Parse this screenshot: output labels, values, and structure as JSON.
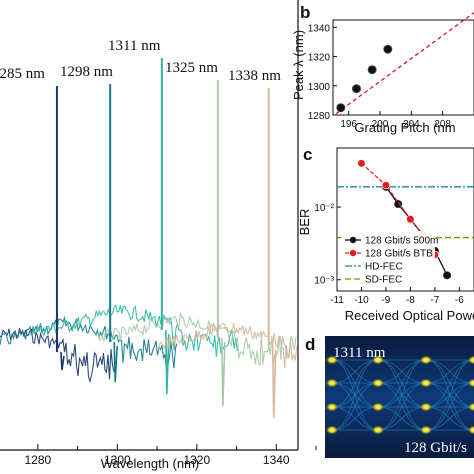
{
  "chart_data": [
    {
      "panel": "a",
      "type": "line",
      "xlabel": "Wavelength (nm)",
      "ylabel": "",
      "xlim": [
        1275,
        1350
      ],
      "x_ticks": [
        "1280",
        "1300",
        "1320",
        "1340"
      ],
      "peaks": [
        {
          "label": "1285 nm",
          "x": 1284.8,
          "color": "#16356e"
        },
        {
          "label": "1298 nm",
          "x": 1298.2,
          "color": "#127a8c"
        },
        {
          "label": "1311 nm",
          "x": 1311.2,
          "color": "#2fb79f"
        },
        {
          "label": "1325 nm",
          "x": 1325.3,
          "color": "#a9c9a6"
        },
        {
          "label": "1338 nm",
          "x": 1338.1,
          "color": "#d8b79c"
        }
      ],
      "grid": false
    },
    {
      "panel": "b",
      "type": "scatter",
      "xlabel": "Grating Pitch (nm",
      "ylabel": "Peak λ (nm)",
      "ylim": [
        1280,
        1345
      ],
      "xlim": [
        194,
        212
      ],
      "x_ticks": [
        "196",
        "200",
        "204",
        "208"
      ],
      "y_ticks": [
        "1280",
        "1300",
        "1320",
        "1340"
      ],
      "points": [
        {
          "x": 195,
          "y": 1285
        },
        {
          "x": 197,
          "y": 1298
        },
        {
          "x": 199,
          "y": 1311
        },
        {
          "x": 201,
          "y": 1325
        }
      ],
      "fit": {
        "color": "#d11c1c",
        "style": "dashed"
      }
    },
    {
      "panel": "c",
      "type": "line",
      "xlabel": "Received Optical Powe",
      "ylabel": "BER",
      "xlim": [
        -11,
        -5.4
      ],
      "x_ticks": [
        "-11",
        "-10",
        "-9",
        "-8",
        "-7",
        "-6"
      ],
      "y_ticks": [
        "10⁻³",
        "10⁻²"
      ],
      "series": [
        {
          "name": "128 Gbit/s 500m",
          "color": "#111111",
          "x": [
            -9.0,
            -8.5,
            -8.0,
            -7.5,
            -7.0,
            -6.5
          ],
          "y": [
            0.019,
            0.011,
            0.0068,
            0.0042,
            0.0025,
            0.00115
          ]
        },
        {
          "name": "128 Gbit/s BTB",
          "color": "#e02020",
          "x": [
            -10.0,
            -9.0,
            -8.0,
            -7.5,
            -7.0
          ],
          "y": [
            0.04,
            0.02,
            0.0068,
            0.0042,
            0.0022
          ]
        }
      ],
      "thresholds": [
        {
          "name": "HD-FEC",
          "color": "#1d8aa6",
          "y": 0.019
        },
        {
          "name": "SD-FEC",
          "color": "#8a8a10",
          "y": 0.0038
        }
      ]
    }
  ],
  "panel_labels": {
    "b": "b",
    "c": "c",
    "d": "d"
  },
  "eye": {
    "wavelength_label": "1311 nm",
    "rate_label": "128 Gbit/s"
  }
}
